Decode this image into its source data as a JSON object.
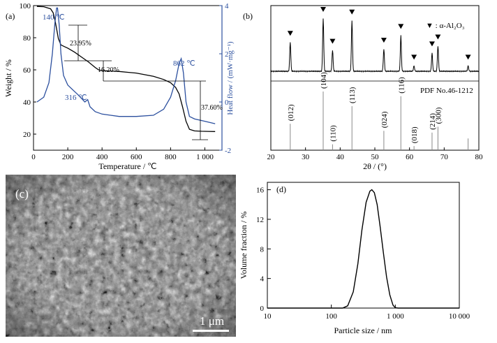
{
  "colors": {
    "tg": "#000000",
    "dsc": "#2b4f9e",
    "hf_axis": "#2b4f9e"
  },
  "panel_a": {
    "label": "(a)",
    "xlabel": "Temperature / ℃",
    "ylabel_left": "Weight / %",
    "ylabel_right": "Heat flow / (mW·mg⁻¹)",
    "peak_labels": [
      "140 ℃",
      "316 ℃",
      "862 ℃"
    ],
    "loss_labels": [
      "23.95%",
      "16.20%",
      "37.60%"
    ]
  },
  "panel_b": {
    "label": "(b)",
    "legend": "▼ : α-Al₂O₃",
    "pdf_label": "PDF No.46-1212",
    "xlabel": "2θ / (°)",
    "hkl": [
      "(012)",
      "(104)",
      "(110)",
      "(113)",
      "(024)",
      "(116)",
      "(018)",
      "(214)",
      "(300)"
    ]
  },
  "panel_c": {
    "label": "(c)",
    "scale": "1 μm"
  },
  "panel_d": {
    "label": "(d)",
    "xlabel": "Particle size / nm",
    "ylabel": "Volume fraction / %"
  },
  "chart_data": [
    {
      "type": "line",
      "title": "",
      "xlabel": "Temperature / ℃",
      "ylabel": "Weight / %",
      "xlim": [
        0,
        1100
      ],
      "ylim": [
        10,
        100
      ],
      "x_ticks": [
        "0",
        "200",
        "400",
        "600",
        "800",
        "1 000"
      ],
      "y_ticks": [
        "20",
        "40",
        "60",
        "80",
        "100"
      ],
      "right_axis": {
        "label": "Heat flow / (mW·mg⁻¹)",
        "ylim": [
          -2,
          4
        ],
        "ticks": [
          "-2",
          "0",
          "2",
          "4"
        ]
      },
      "series": [
        {
          "axis": "left",
          "x": [
            20,
            60,
            100,
            115,
            125,
            135,
            145,
            160,
            180,
            200,
            240,
            280,
            320,
            360,
            380,
            400,
            450,
            500,
            550,
            600,
            700,
            760,
            800,
            830,
            850,
            870,
            890,
            910,
            940,
            980,
            1020,
            1060
          ],
          "y": [
            99.5,
            99.3,
            98.0,
            95.5,
            91.0,
            85.5,
            79.5,
            75.5,
            74.5,
            73.5,
            71.0,
            68.0,
            65.0,
            61.5,
            60.0,
            59.5,
            59.3,
            59.0,
            58.5,
            58.0,
            56.0,
            54.0,
            52.0,
            49.0,
            45.0,
            37.0,
            28.0,
            23.0,
            22.0,
            21.8,
            21.7,
            21.6
          ]
        },
        {
          "axis": "right",
          "x": [
            20,
            60,
            90,
            110,
            125,
            135,
            140,
            150,
            160,
            175,
            200,
            230,
            260,
            280,
            300,
            316,
            330,
            360,
            400,
            450,
            500,
            600,
            700,
            760,
            800,
            830,
            850,
            862,
            875,
            890,
            910,
            940,
            1000,
            1060
          ],
          "y": [
            0.0,
            0.2,
            0.8,
            2.0,
            3.3,
            3.9,
            3.9,
            3.2,
            2.0,
            1.1,
            0.7,
            0.5,
            0.3,
            0.15,
            0.0,
            0.1,
            -0.2,
            -0.4,
            -0.5,
            -0.55,
            -0.6,
            -0.6,
            -0.55,
            -0.3,
            0.2,
            0.9,
            1.6,
            1.8,
            1.2,
            0.0,
            -0.6,
            -0.7,
            -0.8,
            -0.9
          ]
        }
      ],
      "annotations": [
        "140 ℃",
        "316 ℃",
        "862 ℃",
        "23.95%",
        "16.20%",
        "37.60%"
      ]
    },
    {
      "type": "line",
      "title": "",
      "xlabel": "2θ / (°)",
      "xlim": [
        20,
        80
      ],
      "x_ticks": [
        "20",
        "30",
        "40",
        "50",
        "60",
        "70",
        "80"
      ],
      "legend": "▼ : α-Al₂O₃",
      "reference": "PDF No.46-1212",
      "peaks": [
        {
          "two_theta": 25.6,
          "intensity": 0.55
        },
        {
          "two_theta": 35.1,
          "intensity": 1.0
        },
        {
          "two_theta": 37.8,
          "intensity": 0.4
        },
        {
          "two_theta": 43.4,
          "intensity": 0.95
        },
        {
          "two_theta": 52.6,
          "intensity": 0.42
        },
        {
          "two_theta": 57.5,
          "intensity": 0.68
        },
        {
          "two_theta": 61.3,
          "intensity": 0.1
        },
        {
          "two_theta": 66.5,
          "intensity": 0.35
        },
        {
          "two_theta": 68.2,
          "intensity": 0.48
        },
        {
          "two_theta": 76.9,
          "intensity": 0.1
        }
      ],
      "reference_lines": [
        {
          "two_theta": 25.6,
          "intensity": 0.45,
          "hkl": "(012)"
        },
        {
          "two_theta": 35.1,
          "intensity": 1.0,
          "hkl": "(104)"
        },
        {
          "two_theta": 37.8,
          "intensity": 0.1,
          "hkl": "(110)"
        },
        {
          "two_theta": 43.4,
          "intensity": 0.75,
          "hkl": "(113)"
        },
        {
          "two_theta": 52.6,
          "intensity": 0.33,
          "hkl": "(024)"
        },
        {
          "two_theta": 57.5,
          "intensity": 0.92,
          "hkl": "(116)"
        },
        {
          "two_theta": 61.3,
          "intensity": 0.07,
          "hkl": "(018)"
        },
        {
          "two_theta": 66.5,
          "intensity": 0.3,
          "hkl": "(214)"
        },
        {
          "two_theta": 68.2,
          "intensity": 0.4,
          "hkl": "(300)"
        },
        {
          "two_theta": 76.9,
          "intensity": 0.2,
          "hkl": ""
        }
      ]
    },
    {
      "type": "line",
      "title": "",
      "xlabel": "Particle size / nm",
      "ylabel": "Volume fraction / %",
      "x_scale": "log",
      "xlim": [
        10,
        10000
      ],
      "ylim": [
        0,
        17
      ],
      "x_ticks": [
        "10",
        "100",
        "1 000",
        "10 000"
      ],
      "y_ticks": [
        "0",
        "4",
        "8",
        "12",
        "16"
      ],
      "series": [
        {
          "x": [
            10,
            150,
            180,
            220,
            260,
            300,
            350,
            400,
            430,
            470,
            520,
            580,
            650,
            730,
            820,
            920,
            1000,
            1100,
            10000
          ],
          "y": [
            0,
            0,
            0.3,
            2.2,
            6.0,
            10.5,
            14.3,
            15.8,
            16.0,
            15.6,
            14.0,
            11.0,
            7.5,
            4.2,
            1.8,
            0.4,
            0.05,
            0,
            0
          ]
        }
      ]
    }
  ]
}
